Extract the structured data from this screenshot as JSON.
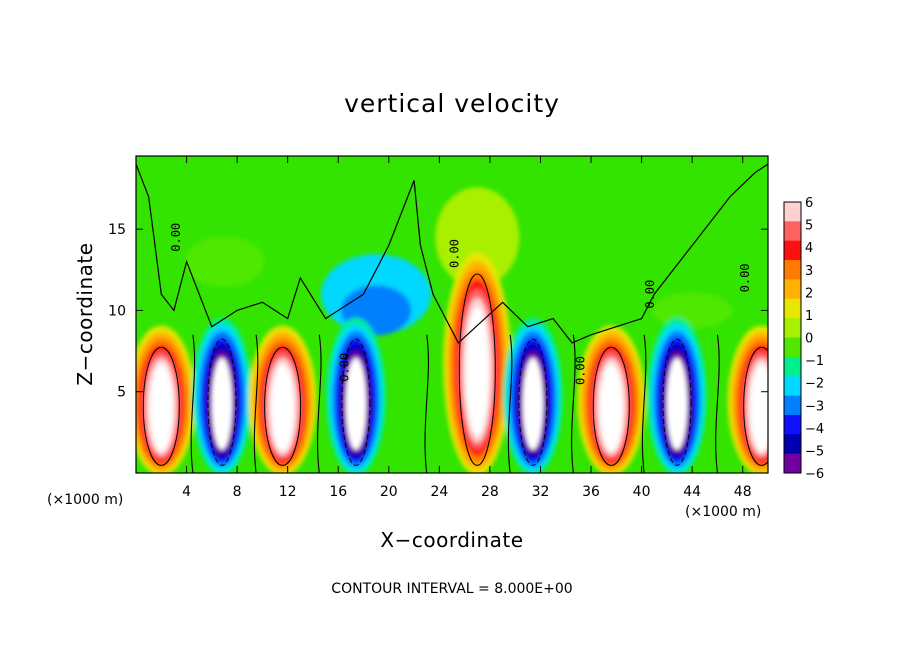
{
  "chart_data": {
    "type": "heatmap",
    "title": "vertical velocity",
    "xlabel": "X−coordinate",
    "ylabel": "Z−coordinate",
    "x_unit_left": "(×1000 m)",
    "x_unit_right": "(×1000 m)",
    "xlim": [
      0,
      50
    ],
    "ylim": [
      0,
      19.5
    ],
    "x_ticks": [
      4,
      8,
      12,
      16,
      20,
      24,
      28,
      32,
      36,
      40,
      44,
      48
    ],
    "y_ticks": [
      5,
      10,
      15
    ],
    "contour_note": "CONTOUR INTERVAL = 8.000E+00",
    "contour_labels": [
      "0.00",
      "0.00",
      "0.00",
      "0.00",
      "0.00",
      "0.00"
    ],
    "colorbar": {
      "levels": [
        6,
        5,
        4,
        3,
        2,
        1,
        0,
        -1,
        -2,
        -3,
        -4,
        -5,
        -6
      ],
      "colors": [
        "#ffd0d0",
        "#ff6060",
        "#ff1010",
        "#ff7a00",
        "#ffb000",
        "#e6e600",
        "#a8f000",
        "#50e800",
        "#00f090",
        "#00d8ff",
        "#0080ff",
        "#1010ff",
        "#0000b0",
        "#7000a0"
      ]
    },
    "cells": [
      {
        "x": 2.0,
        "sign": 1,
        "peak": 8
      },
      {
        "x": 6.8,
        "sign": -1,
        "peak": 7
      },
      {
        "x": 11.6,
        "sign": 1,
        "peak": 8
      },
      {
        "x": 17.4,
        "sign": -1,
        "peak": 8
      },
      {
        "x": 27.0,
        "sign": 1,
        "peak": 9
      },
      {
        "x": 31.4,
        "sign": -1,
        "peak": 8
      },
      {
        "x": 37.6,
        "sign": 1,
        "peak": 8
      },
      {
        "x": 42.8,
        "sign": -1,
        "peak": 7
      },
      {
        "x": 49.5,
        "sign": 1,
        "peak": 7
      }
    ]
  }
}
